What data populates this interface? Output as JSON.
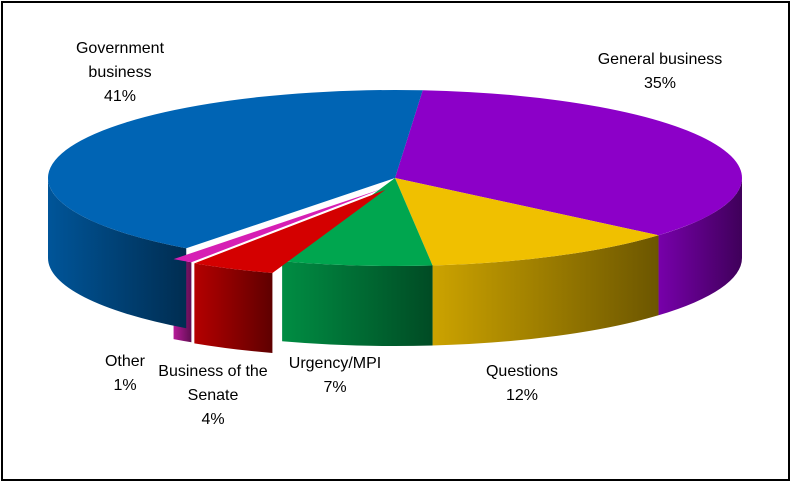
{
  "chart_data": {
    "type": "pie3d",
    "categories": [
      "General business",
      "Questions",
      "Urgency/MPI",
      "Business of the Senate",
      "Other",
      "Government business"
    ],
    "values": [
      35,
      12,
      7,
      4,
      1,
      41
    ],
    "value_labels": [
      "35%",
      "12%",
      "7%",
      "4%",
      "1%",
      "41%"
    ],
    "colors": [
      "#8c00c8",
      "#f0c000",
      "#00a64f",
      "#d40000",
      "#d61fb4",
      "#0064b4"
    ]
  }
}
